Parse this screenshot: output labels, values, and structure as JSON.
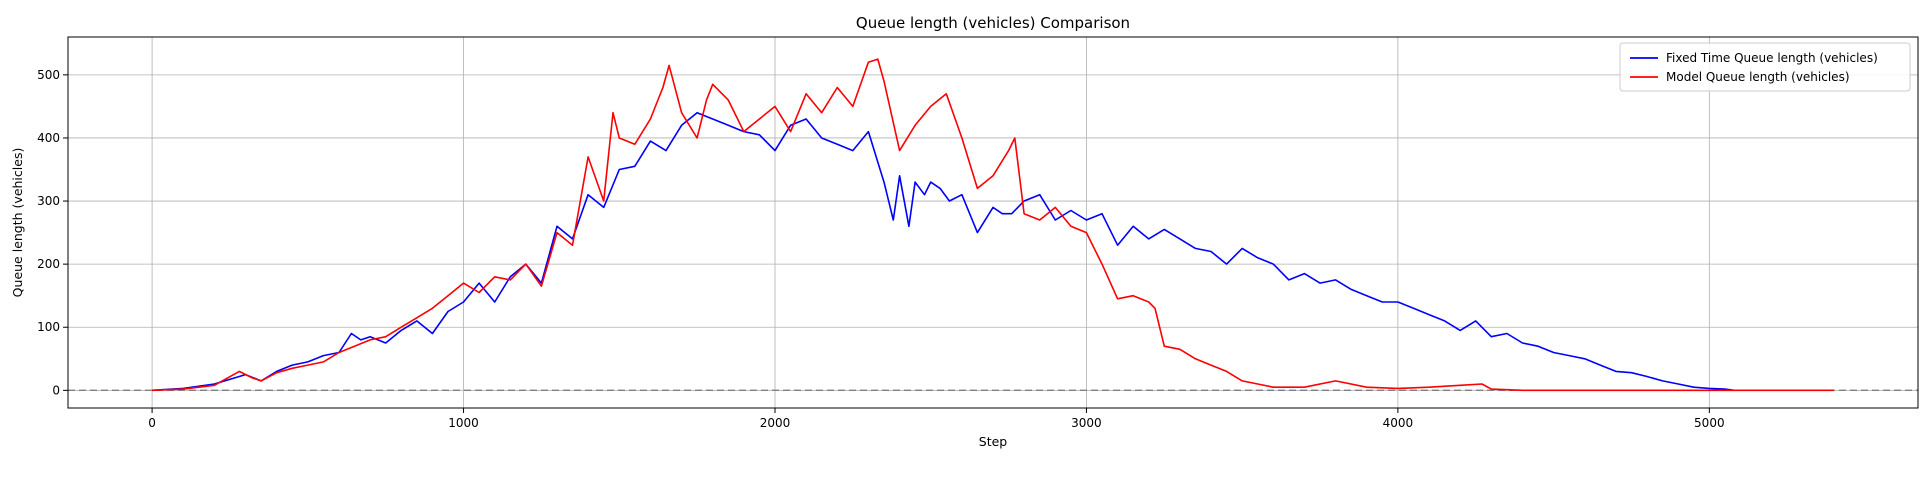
{
  "chart_data": {
    "type": "line",
    "title": "Queue length (vehicles) Comparison",
    "xlabel": "Step",
    "ylabel": "Queue length (vehicles)",
    "xlim": [
      -270,
      5670
    ],
    "ylim": [
      -28,
      560
    ],
    "xticks": [
      0,
      1000,
      2000,
      3000,
      4000,
      5000
    ],
    "yticks": [
      0,
      100,
      200,
      300,
      400,
      500
    ],
    "grid": true,
    "legend_position": "top-right",
    "reference_line": {
      "y": 0,
      "style": "dashed",
      "color": "#808080"
    },
    "series": [
      {
        "name": "Fixed Time Queue length (vehicles)",
        "color": "#0000ff",
        "x": [
          0,
          100,
          200,
          300,
          350,
          400,
          450,
          500,
          550,
          600,
          640,
          670,
          700,
          750,
          800,
          850,
          900,
          950,
          1000,
          1050,
          1100,
          1150,
          1200,
          1250,
          1300,
          1350,
          1400,
          1450,
          1500,
          1550,
          1600,
          1650,
          1700,
          1750,
          1800,
          1850,
          1900,
          1950,
          2000,
          2050,
          2100,
          2150,
          2200,
          2250,
          2300,
          2350,
          2380,
          2400,
          2430,
          2450,
          2480,
          2500,
          2530,
          2560,
          2600,
          2650,
          2700,
          2730,
          2760,
          2800,
          2850,
          2900,
          2950,
          3000,
          3050,
          3100,
          3150,
          3200,
          3250,
          3300,
          3350,
          3400,
          3450,
          3500,
          3550,
          3600,
          3650,
          3700,
          3750,
          3800,
          3850,
          3900,
          3950,
          4000,
          4050,
          4100,
          4150,
          4200,
          4250,
          4300,
          4350,
          4400,
          4450,
          4500,
          4550,
          4600,
          4650,
          4700,
          4750,
          4800,
          4850,
          4900,
          4950,
          5000,
          5050,
          5080
        ],
        "values": [
          0,
          3,
          10,
          25,
          15,
          30,
          40,
          45,
          55,
          60,
          90,
          80,
          85,
          75,
          95,
          110,
          90,
          125,
          140,
          170,
          140,
          180,
          200,
          170,
          260,
          240,
          310,
          290,
          350,
          355,
          395,
          380,
          420,
          440,
          430,
          420,
          410,
          405,
          380,
          420,
          430,
          400,
          390,
          380,
          410,
          330,
          270,
          340,
          260,
          330,
          310,
          330,
          320,
          300,
          310,
          250,
          290,
          280,
          280,
          300,
          310,
          270,
          285,
          270,
          280,
          230,
          260,
          240,
          255,
          240,
          225,
          220,
          200,
          225,
          210,
          200,
          175,
          185,
          170,
          175,
          160,
          150,
          140,
          140,
          130,
          120,
          110,
          95,
          110,
          85,
          90,
          75,
          70,
          60,
          55,
          50,
          40,
          30,
          28,
          22,
          15,
          10,
          5,
          3,
          2,
          0
        ]
      },
      {
        "name": "Model Queue length (vehicles)",
        "color": "#ff0000",
        "x": [
          0,
          100,
          200,
          280,
          320,
          350,
          400,
          450,
          500,
          550,
          600,
          650,
          700,
          750,
          800,
          850,
          900,
          950,
          1000,
          1050,
          1100,
          1150,
          1200,
          1250,
          1300,
          1350,
          1400,
          1450,
          1480,
          1500,
          1550,
          1600,
          1640,
          1660,
          1700,
          1750,
          1780,
          1800,
          1850,
          1900,
          1950,
          2000,
          2050,
          2100,
          2150,
          2200,
          2250,
          2300,
          2330,
          2350,
          2400,
          2450,
          2500,
          2550,
          2600,
          2650,
          2700,
          2750,
          2770,
          2800,
          2850,
          2900,
          2950,
          3000,
          3050,
          3100,
          3150,
          3200,
          3220,
          3250,
          3300,
          3350,
          3400,
          3450,
          3500,
          3550,
          3600,
          3700,
          3800,
          3900,
          4000,
          4100,
          4200,
          4270,
          4300,
          4400,
          4600,
          4800,
          5000,
          5200,
          5400
        ],
        "values": [
          0,
          2,
          8,
          30,
          20,
          15,
          28,
          35,
          40,
          45,
          60,
          70,
          80,
          85,
          100,
          115,
          130,
          150,
          170,
          155,
          180,
          175,
          200,
          165,
          250,
          230,
          370,
          300,
          440,
          400,
          390,
          430,
          480,
          515,
          440,
          400,
          460,
          485,
          460,
          410,
          430,
          450,
          410,
          470,
          440,
          480,
          450,
          520,
          525,
          490,
          380,
          420,
          450,
          470,
          400,
          320,
          340,
          380,
          400,
          280,
          270,
          290,
          260,
          250,
          200,
          145,
          150,
          140,
          130,
          70,
          65,
          50,
          40,
          30,
          15,
          10,
          5,
          5,
          15,
          5,
          3,
          5,
          8,
          10,
          2,
          0,
          0,
          0,
          0,
          0,
          0
        ]
      }
    ]
  }
}
